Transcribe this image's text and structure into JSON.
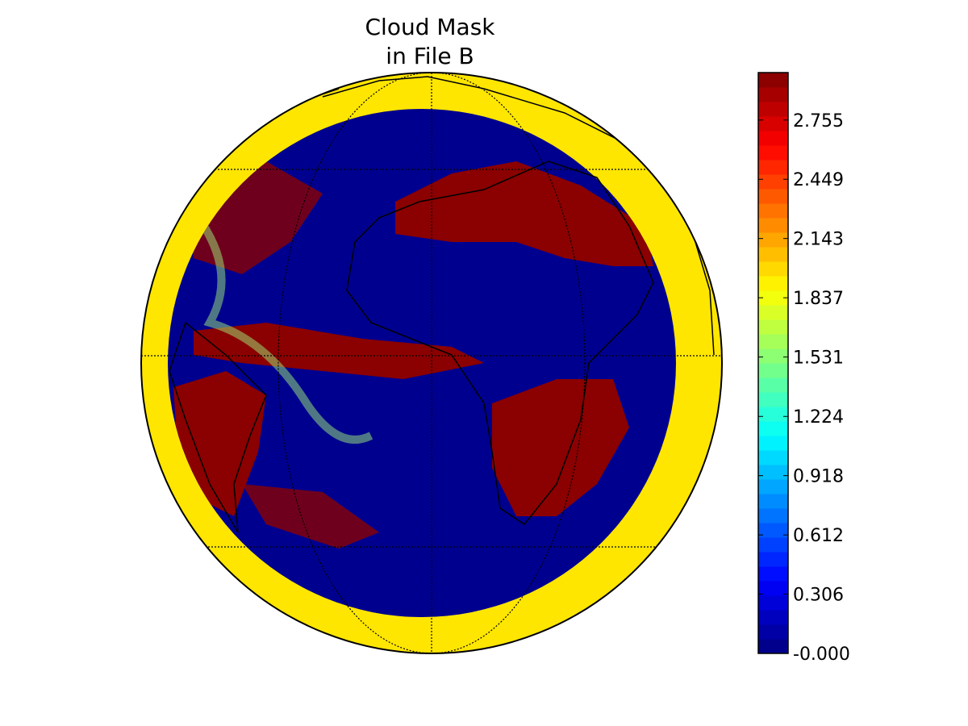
{
  "title": [
    "Cloud Mask",
    "in File B"
  ],
  "colorbar": {
    "lim": [
      0,
      3
    ],
    "ticks": [
      {
        "value": 0,
        "label": "-0.000"
      },
      0.306,
      0.612,
      0.918,
      1.224,
      1.531,
      1.837,
      2.143,
      2.449,
      2.755
    ]
  }
}
